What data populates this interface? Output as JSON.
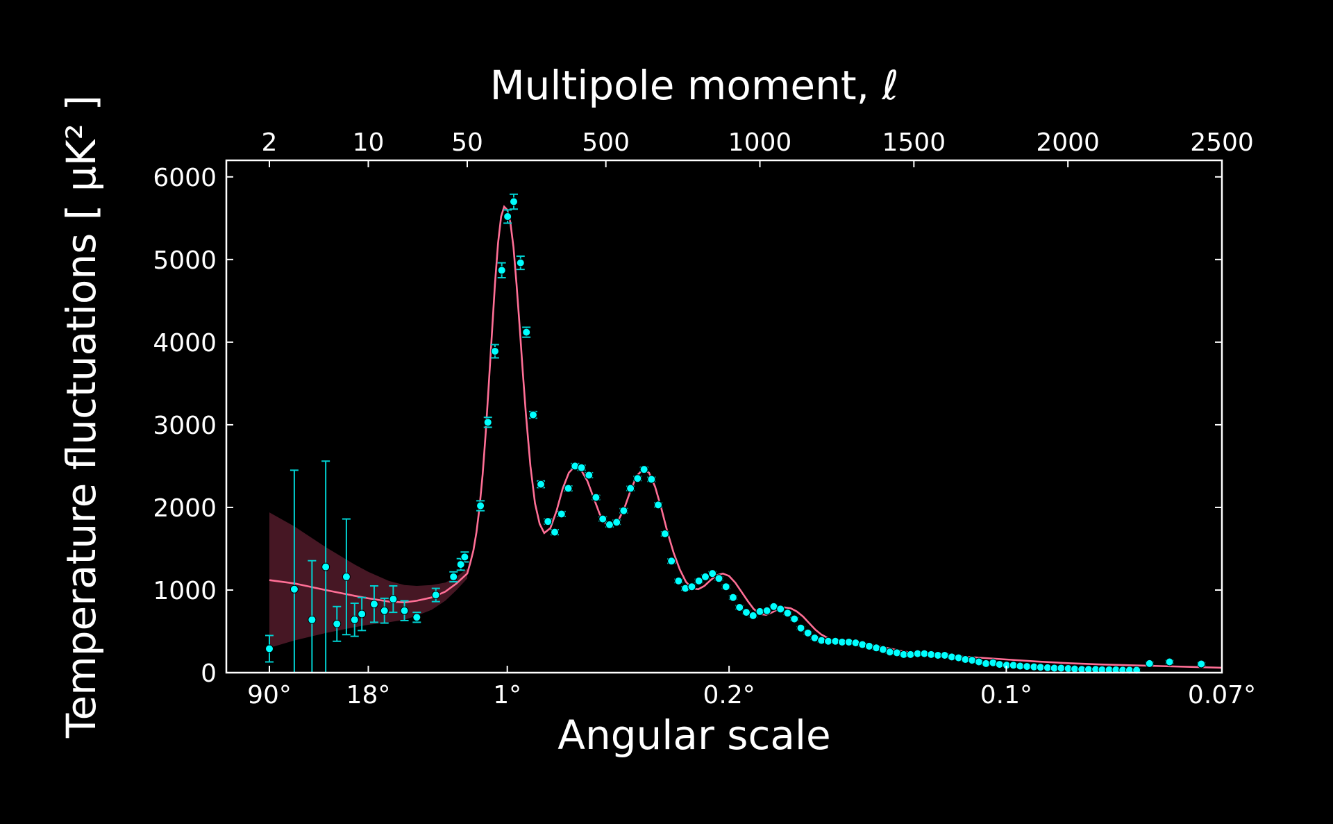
{
  "chart_data": {
    "type": "scatter",
    "title": "",
    "top_xlabel": "Multipole moment, ℓ",
    "xlabel": "Angular scale",
    "ylabel": "Temperature fluctuations [ μK² ]",
    "ylim": [
      0,
      6200
    ],
    "y_ticks": [
      0,
      1000,
      2000,
      3000,
      4000,
      5000,
      6000
    ],
    "x_scale": "hybrid: logarithmic for ℓ < 50, linear for ℓ ≥ 50",
    "xlim": [
      1.5,
      2500
    ],
    "top_ticks": [
      {
        "value": 2,
        "label": "2"
      },
      {
        "value": 10,
        "label": "10"
      },
      {
        "value": 50,
        "label": "50"
      },
      {
        "value": 500,
        "label": "500"
      },
      {
        "value": 1000,
        "label": "1000"
      },
      {
        "value": 1500,
        "label": "1500"
      },
      {
        "value": 2000,
        "label": "2000"
      },
      {
        "value": 2500,
        "label": "2500"
      }
    ],
    "bottom_ticks": [
      {
        "value": 2,
        "label": "90°"
      },
      {
        "value": 10,
        "label": "18°"
      },
      {
        "value": 180,
        "label": "1°"
      },
      {
        "value": 900,
        "label": "0.2°"
      },
      {
        "value": 1800,
        "label": "0.1°"
      },
      {
        "value": 2500,
        "label": "0.07°"
      }
    ],
    "grid": false,
    "legend": "none",
    "colors": {
      "background": "#000000",
      "axes": "#ffffff",
      "points": "#00ffff",
      "error_bars": "#00d2d2",
      "model_line": "#ff6f96",
      "uncertainty_band": "#4a1826"
    },
    "series": [
      {
        "kind": "points",
        "x": [
          2,
          3,
          4,
          5,
          6,
          7,
          8,
          9,
          11,
          13,
          15,
          18,
          22,
          30,
          40,
          45,
          48
        ],
        "y": [
          290,
          1010,
          640,
          1280,
          590,
          1160,
          640,
          710,
          830,
          750,
          890,
          750,
          670,
          940,
          1160,
          1310,
          1400
        ],
        "err": [
          160,
          1440,
          715,
          1280,
          210,
          700,
          200,
          200,
          220,
          150,
          160,
          120,
          60,
          80,
          60,
          70,
          60
        ]
      },
      {
        "kind": "points",
        "x": [
          93,
          117,
          140,
          162,
          181,
          201,
          223,
          242,
          264,
          289,
          312,
          334,
          356,
          378,
          400,
          421,
          445,
          468,
          490,
          512,
          535,
          558,
          580,
          603,
          624,
          648,
          670,
          692,
          713,
          736,
          758,
          779,
          802,
          823,
          846,
          867,
          890,
          913,
          934,
          956,
          978,
          1000,
          1023,
          1045,
          1067,
          1090,
          1112,
          1133,
          1156,
          1178,
          1200,
          1222,
          1245,
          1267,
          1289,
          1311,
          1333,
          1355,
          1378,
          1400,
          1422,
          1445,
          1467,
          1489,
          1512,
          1534,
          1556,
          1578,
          1600,
          1623,
          1645,
          1667,
          1689,
          1711,
          1734,
          1757,
          1778,
          1801,
          1823,
          1845,
          1867,
          1890,
          1911,
          1934,
          1956,
          1978,
          2001,
          2022,
          2045,
          2067,
          2090,
          2111,
          2134,
          2156,
          2178,
          2200,
          2223,
          2265,
          2330,
          2433
        ],
        "y": [
          2020,
          3030,
          3890,
          4870,
          5520,
          5700,
          4960,
          4120,
          3120,
          2280,
          1830,
          1700,
          1920,
          2230,
          2500,
          2480,
          2390,
          2120,
          1860,
          1790,
          1820,
          1960,
          2230,
          2350,
          2460,
          2340,
          2030,
          1680,
          1350,
          1110,
          1020,
          1040,
          1110,
          1160,
          1200,
          1140,
          1040,
          910,
          790,
          730,
          690,
          740,
          750,
          800,
          770,
          720,
          650,
          540,
          480,
          420,
          390,
          380,
          380,
          370,
          370,
          360,
          340,
          320,
          300,
          280,
          250,
          240,
          220,
          220,
          230,
          230,
          220,
          210,
          210,
          190,
          180,
          160,
          150,
          130,
          110,
          120,
          100,
          90,
          90,
          80,
          75,
          70,
          65,
          60,
          55,
          55,
          50,
          45,
          40,
          40,
          40,
          35,
          35,
          35,
          30,
          30,
          30,
          110,
          130,
          105
        ],
        "err": [
          60,
          60,
          80,
          90,
          80,
          90,
          80,
          60,
          40,
          40,
          30,
          30,
          30,
          30,
          30,
          30,
          30,
          25,
          25,
          25,
          25,
          25,
          25,
          25,
          25,
          25,
          25,
          25,
          25,
          20,
          20,
          20,
          20,
          20,
          20,
          20,
          20,
          20,
          20,
          15,
          15,
          15,
          15,
          15,
          15,
          15,
          15,
          15,
          15,
          15,
          15,
          15,
          15,
          15,
          15,
          15,
          15,
          15,
          15,
          15,
          15,
          15,
          15,
          15,
          15,
          15,
          15,
          15,
          15,
          15,
          15,
          15,
          15,
          15,
          15,
          15,
          15,
          15,
          15,
          15,
          15,
          15,
          15,
          15,
          15,
          15,
          15,
          15,
          15,
          15,
          15,
          15,
          15,
          15,
          15,
          15,
          15,
          15,
          15,
          15
        ]
      },
      {
        "kind": "model",
        "x": [
          2,
          3,
          5,
          8,
          10,
          14,
          18,
          22,
          28,
          35,
          42,
          50,
          60,
          70,
          80,
          90,
          100,
          110,
          120,
          130,
          140,
          150,
          160,
          170,
          180,
          190,
          200,
          210,
          220,
          230,
          240,
          255,
          270,
          285,
          300,
          320,
          340,
          360,
          380,
          400,
          420,
          440,
          460,
          480,
          500,
          520,
          540,
          560,
          580,
          600,
          620,
          640,
          660,
          680,
          700,
          720,
          740,
          760,
          780,
          800,
          820,
          840,
          860,
          880,
          900,
          920,
          940,
          960,
          980,
          1000,
          1020,
          1040,
          1060,
          1080,
          1100,
          1120,
          1140,
          1160,
          1180,
          1200,
          1230,
          1260,
          1300,
          1350,
          1400,
          1450,
          1500,
          1550,
          1600,
          1700,
          1800,
          1900,
          2000,
          2100,
          2200,
          2300,
          2400,
          2500
        ],
        "y": [
          1120,
          1080,
          1000,
          930,
          900,
          860,
          850,
          870,
          910,
          980,
          1080,
          1200,
          1330,
          1480,
          1700,
          2000,
          2400,
          2900,
          3500,
          4100,
          4700,
          5200,
          5520,
          5640,
          5600,
          5450,
          5150,
          4700,
          4200,
          3650,
          3150,
          2500,
          2050,
          1800,
          1690,
          1750,
          1960,
          2230,
          2420,
          2500,
          2450,
          2320,
          2120,
          1920,
          1800,
          1780,
          1840,
          1990,
          2200,
          2380,
          2460,
          2420,
          2250,
          1990,
          1700,
          1450,
          1250,
          1100,
          1020,
          1010,
          1050,
          1120,
          1180,
          1200,
          1170,
          1090,
          980,
          870,
          770,
          710,
          700,
          730,
          770,
          790,
          780,
          740,
          680,
          600,
          520,
          460,
          400,
          370,
          360,
          340,
          310,
          270,
          235,
          215,
          205,
          185,
          160,
          135,
          115,
          100,
          90,
          80,
          70,
          60
        ],
        "band_x": [
          2,
          3,
          5,
          8,
          10,
          14,
          18,
          22,
          28,
          35,
          42,
          50
        ],
        "band_half_width": [
          820,
          690,
          520,
          380,
          320,
          250,
          210,
          180,
          150,
          110,
          80,
          60
        ]
      }
    ]
  }
}
